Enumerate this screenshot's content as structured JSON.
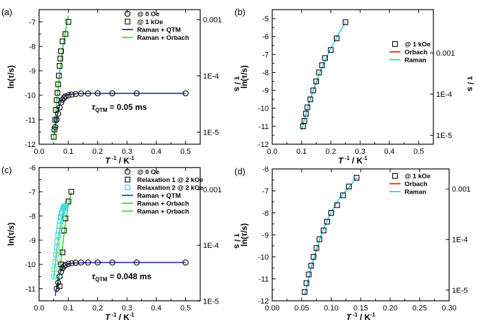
{
  "colors": {
    "raman_qtm": "#1f2fbf",
    "raman_orbach": "#33dd33",
    "orbach": "#e41a1c",
    "raman": "#22d3e6",
    "relax2": "#2ad4f0",
    "axis": "#000000"
  },
  "chart_data": [
    {
      "id": "a",
      "type": "scatter",
      "panel_label": "(a)",
      "xlabel": "T -1 / K-1",
      "ylabel": "ln(τ/s)",
      "right_label": "τ / s",
      "xlim": [
        0.0,
        0.55
      ],
      "ylim": [
        -12,
        -6.5
      ],
      "xticks": [
        "0.0",
        "0.1",
        "0.2",
        "0.3",
        "0.4",
        "0.5"
      ],
      "yticks": [
        "-12",
        "-11",
        "-10",
        "-9",
        "-8",
        "-7"
      ],
      "right_ticks": [
        {
          "label": "0.001",
          "ln": -6.91
        },
        {
          "label": "1E-4",
          "ln": -9.21
        },
        {
          "label": "1E-5",
          "ln": -11.51
        }
      ],
      "annotation": {
        "text": "τQTM = 0.05 ms",
        "main": "τ",
        "sub": "QTM",
        "rest": " = 0.05 ms",
        "x": 0.18,
        "y": -10.6
      },
      "series": [
        {
          "name": "@ 0 Oe",
          "marker": "circle",
          "color": "#000000",
          "x": [
            0.055,
            0.06,
            0.065,
            0.07,
            0.075,
            0.08,
            0.085,
            0.09,
            0.1,
            0.111,
            0.125,
            0.143,
            0.167,
            0.2,
            0.25,
            0.333,
            0.5
          ],
          "y": [
            -11.3,
            -11.0,
            -10.75,
            -10.5,
            -10.3,
            -10.18,
            -10.1,
            -10.05,
            -10.0,
            -9.97,
            -9.95,
            -9.93,
            -9.93,
            -9.92,
            -9.92,
            -9.92,
            -9.92
          ]
        },
        {
          "name": "@ 1 kOe",
          "marker": "square",
          "color": "#000000",
          "x": [
            0.05,
            0.0525,
            0.055,
            0.0575,
            0.06,
            0.0625,
            0.065,
            0.0675,
            0.07,
            0.0725,
            0.075,
            0.08,
            0.09,
            0.1
          ],
          "y": [
            -11.7,
            -11.4,
            -11.0,
            -10.6,
            -10.2,
            -9.9,
            -9.55,
            -9.2,
            -8.8,
            -8.5,
            -8.2,
            -7.8,
            -7.5,
            -7.0
          ]
        },
        {
          "name": "Raman + QTM",
          "marker": "line",
          "color": "#1f2fbf",
          "x": [
            0.052,
            0.056,
            0.06,
            0.065,
            0.07,
            0.075,
            0.08,
            0.09,
            0.1,
            0.12,
            0.15,
            0.2,
            0.3,
            0.5
          ],
          "y": [
            -11.6,
            -11.25,
            -10.95,
            -10.65,
            -10.42,
            -10.25,
            -10.13,
            -10.02,
            -9.97,
            -9.94,
            -9.93,
            -9.92,
            -9.92,
            -9.92
          ]
        },
        {
          "name": "Raman + Orbach",
          "marker": "line",
          "color": "#33dd33",
          "x": [
            0.049,
            0.055,
            0.06,
            0.065,
            0.07,
            0.075,
            0.08,
            0.085,
            0.09,
            0.095,
            0.1
          ],
          "y": [
            -11.8,
            -11.0,
            -10.3,
            -9.7,
            -9.1,
            -8.6,
            -8.15,
            -7.75,
            -7.4,
            -7.05,
            -6.75
          ]
        }
      ]
    },
    {
      "id": "b",
      "type": "scatter",
      "panel_label": "(b)",
      "xlabel": "T -1 / K-1",
      "ylabel": "ln(τ/s)",
      "right_label": "τ / s",
      "xlim": [
        0.0,
        0.55
      ],
      "ylim": [
        -12,
        -4.5
      ],
      "xticks": [
        "0.0",
        "0.1",
        "0.2",
        "0.3",
        "0.4",
        "0.5"
      ],
      "yticks": [
        "-12",
        "-11",
        "-10",
        "-9",
        "-8",
        "-7",
        "-6",
        "-5"
      ],
      "right_ticks": [
        {
          "label": "0.001",
          "ln": -6.91
        },
        {
          "label": "1E-4",
          "ln": -9.21
        },
        {
          "label": "1E-5",
          "ln": -11.51
        }
      ],
      "series": [
        {
          "name": "@ 1 kOe",
          "marker": "square",
          "color": "#000000",
          "x": [
            0.105,
            0.11,
            0.115,
            0.12,
            0.13,
            0.14,
            0.15,
            0.16,
            0.17,
            0.18,
            0.2,
            0.22,
            0.25
          ],
          "y": [
            -11.0,
            -10.7,
            -10.3,
            -9.95,
            -9.5,
            -9.0,
            -8.5,
            -8.0,
            -7.6,
            -7.2,
            -6.75,
            -6.1,
            -5.2
          ]
        },
        {
          "name": "Orbach",
          "marker": "line",
          "color": "#e41a1c",
          "x": [
            0.1,
            0.12,
            0.14,
            0.155
          ],
          "y": [
            -11.2,
            -10.0,
            -9.0,
            -8.4
          ]
        },
        {
          "name": "Raman",
          "marker": "line",
          "color": "#22d3e6",
          "x": [
            0.1,
            0.12,
            0.14,
            0.16,
            0.18,
            0.2,
            0.22,
            0.25
          ],
          "y": [
            -11.2,
            -10.0,
            -9.0,
            -8.1,
            -7.35,
            -6.65,
            -6.05,
            -5.2
          ]
        }
      ]
    },
    {
      "id": "c",
      "type": "scatter",
      "panel_label": "(c)",
      "xlabel": "T -1 / K-1",
      "ylabel": "ln(τ/s)",
      "right_label": "τ / s",
      "xlim": [
        0.0,
        0.55
      ],
      "ylim": [
        -11.5,
        -6
      ],
      "xticks": [
        "0.0",
        "0.1",
        "0.2",
        "0.3",
        "0.4",
        "0.5"
      ],
      "yticks": [
        "-11",
        "-10",
        "-9",
        "-8",
        "-7",
        "-6"
      ],
      "right_ticks": [
        {
          "label": "0.001",
          "ln": -6.91
        },
        {
          "label": "1E-4",
          "ln": -9.21
        },
        {
          "label": "1E-5",
          "ln": -11.51
        }
      ],
      "annotation": {
        "text": "τQTM = 0.048 ms",
        "main": "τ",
        "sub": "QTM",
        "rest": " = 0.048 ms",
        "x": 0.18,
        "y": -10.6
      },
      "series": [
        {
          "name": "@ 0 Oe",
          "marker": "circle",
          "color": "#000000",
          "x": [
            0.06,
            0.065,
            0.07,
            0.075,
            0.08,
            0.085,
            0.09,
            0.1,
            0.111,
            0.125,
            0.143,
            0.167,
            0.2,
            0.25,
            0.333,
            0.5
          ],
          "y": [
            -11.0,
            -10.75,
            -10.5,
            -10.3,
            -10.15,
            -10.07,
            -10.02,
            -9.97,
            -9.95,
            -9.93,
            -9.92,
            -9.92,
            -9.92,
            -9.92,
            -9.92,
            -9.92
          ]
        },
        {
          "name": "Relaxation 1 @ 2 kOe",
          "marker": "square",
          "color": "#000000",
          "x": [
            0.07,
            0.075,
            0.08,
            0.085,
            0.09,
            0.1,
            0.11
          ],
          "y": [
            -10.9,
            -10.0,
            -9.5,
            -8.6,
            -8.1,
            -7.4,
            -7.0
          ]
        },
        {
          "name": "Relaxation 2 @ 2 kOe",
          "marker": "open-square",
          "color": "#2ad4f0",
          "x": [
            0.05,
            0.0525,
            0.055,
            0.0575,
            0.06,
            0.0625,
            0.065,
            0.0675,
            0.07,
            0.0725,
            0.075,
            0.0775,
            0.08,
            0.0825,
            0.085,
            0.0875,
            0.09
          ],
          "y": [
            -10.5,
            -10.2,
            -9.9,
            -9.6,
            -9.3,
            -9.05,
            -8.8,
            -8.6,
            -8.4,
            -8.2,
            -8.05,
            -7.9,
            -7.8,
            -7.7,
            -7.65,
            -7.6,
            -7.6
          ]
        },
        {
          "name": "Raman + QTM",
          "marker": "line",
          "color": "#1f2fbf",
          "x": [
            0.055,
            0.06,
            0.065,
            0.07,
            0.075,
            0.08,
            0.09,
            0.1,
            0.12,
            0.15,
            0.2,
            0.3,
            0.5
          ],
          "y": [
            -11.3,
            -10.95,
            -10.65,
            -10.42,
            -10.25,
            -10.13,
            -10.02,
            -9.97,
            -9.94,
            -9.93,
            -9.92,
            -9.92,
            -9.92
          ]
        },
        {
          "name": "Raman + Orbach",
          "marker": "line",
          "color": "#33dd33",
          "x": [
            0.065,
            0.07,
            0.075,
            0.08,
            0.085,
            0.09,
            0.095,
            0.1,
            0.105,
            0.11
          ],
          "y": [
            -11.0,
            -10.4,
            -9.8,
            -9.25,
            -8.75,
            -8.3,
            -7.9,
            -7.55,
            -7.25,
            -7.0
          ]
        },
        {
          "name": "Raman + Orbach",
          "marker": "line",
          "color": "#33dd33",
          "x": [
            0.05,
            0.055,
            0.06,
            0.065,
            0.07,
            0.075,
            0.08,
            0.085,
            0.09,
            0.095
          ],
          "y": [
            -10.6,
            -10.0,
            -9.45,
            -9.0,
            -8.6,
            -8.25,
            -7.95,
            -7.7,
            -7.5,
            -7.35
          ]
        }
      ]
    },
    {
      "id": "d",
      "type": "scatter",
      "panel_label": "(d)",
      "xlabel": "T -1 / K-1",
      "ylabel": "ln(τ/s)",
      "right_label": "τ / s",
      "xlim": [
        0.0,
        0.3
      ],
      "ylim": [
        -12,
        -6
      ],
      "xticks": [
        "0.00",
        "0.05",
        "0.10",
        "0.15",
        "0.20",
        "0.25",
        "0.30"
      ],
      "yticks": [
        "-12",
        "-11",
        "-10",
        "-9",
        "-8",
        "-7",
        "-6"
      ],
      "right_ticks": [
        {
          "label": "0.001",
          "ln": -6.91
        },
        {
          "label": "1E-4",
          "ln": -9.21
        },
        {
          "label": "1E-5",
          "ln": -11.51
        }
      ],
      "series": [
        {
          "name": "@ 1 kOe",
          "marker": "square",
          "color": "#000000",
          "x": [
            0.055,
            0.058,
            0.062,
            0.066,
            0.07,
            0.075,
            0.08,
            0.087,
            0.093,
            0.1,
            0.11,
            0.12,
            0.13,
            0.143
          ],
          "y": [
            -11.6,
            -11.2,
            -10.8,
            -10.4,
            -10.0,
            -9.6,
            -9.2,
            -8.8,
            -8.4,
            -8.0,
            -7.65,
            -7.2,
            -6.8,
            -6.4
          ]
        },
        {
          "name": "Orbach",
          "marker": "line",
          "color": "#e41a1c",
          "x": [
            0.055,
            0.065,
            0.075,
            0.08
          ],
          "y": [
            -11.75,
            -10.6,
            -9.7,
            -9.25
          ]
        },
        {
          "name": "Raman",
          "marker": "line",
          "color": "#22d3e6",
          "x": [
            0.055,
            0.065,
            0.075,
            0.085,
            0.1,
            0.115,
            0.13,
            0.143
          ],
          "y": [
            -11.75,
            -10.6,
            -9.65,
            -8.85,
            -7.95,
            -7.3,
            -6.85,
            -6.4
          ]
        }
      ]
    }
  ]
}
